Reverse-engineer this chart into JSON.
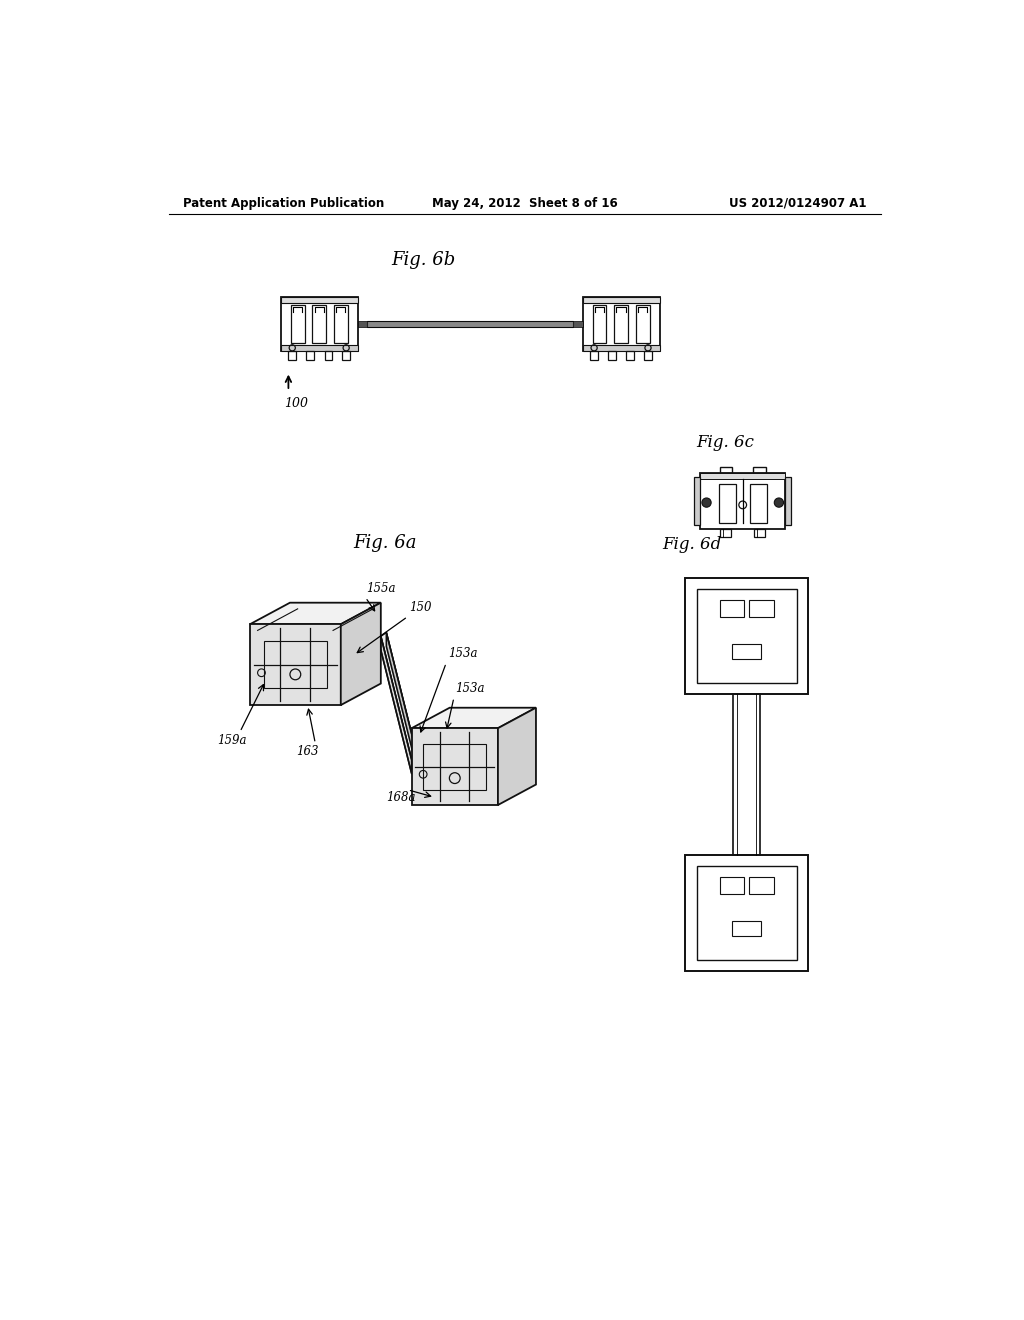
{
  "bg_color": "#ffffff",
  "header_left": "Patent Application Publication",
  "header_mid": "May 24, 2012  Sheet 8 of 16",
  "header_right": "US 2012/0124907 A1",
  "fig6b_label": "Fig. 6b",
  "fig6c_label": "Fig. 6c",
  "fig6a_label": "Fig. 6a",
  "fig6d_label": "Fig. 6d",
  "ref_100": "100",
  "ref_150": "150",
  "ref_153a_1": "155a",
  "ref_153a_2": "153a",
  "ref_153a_3": "153a",
  "ref_155a_1": "155a",
  "ref_159a": "159a",
  "ref_163": "163",
  "ref_168a": "168a"
}
